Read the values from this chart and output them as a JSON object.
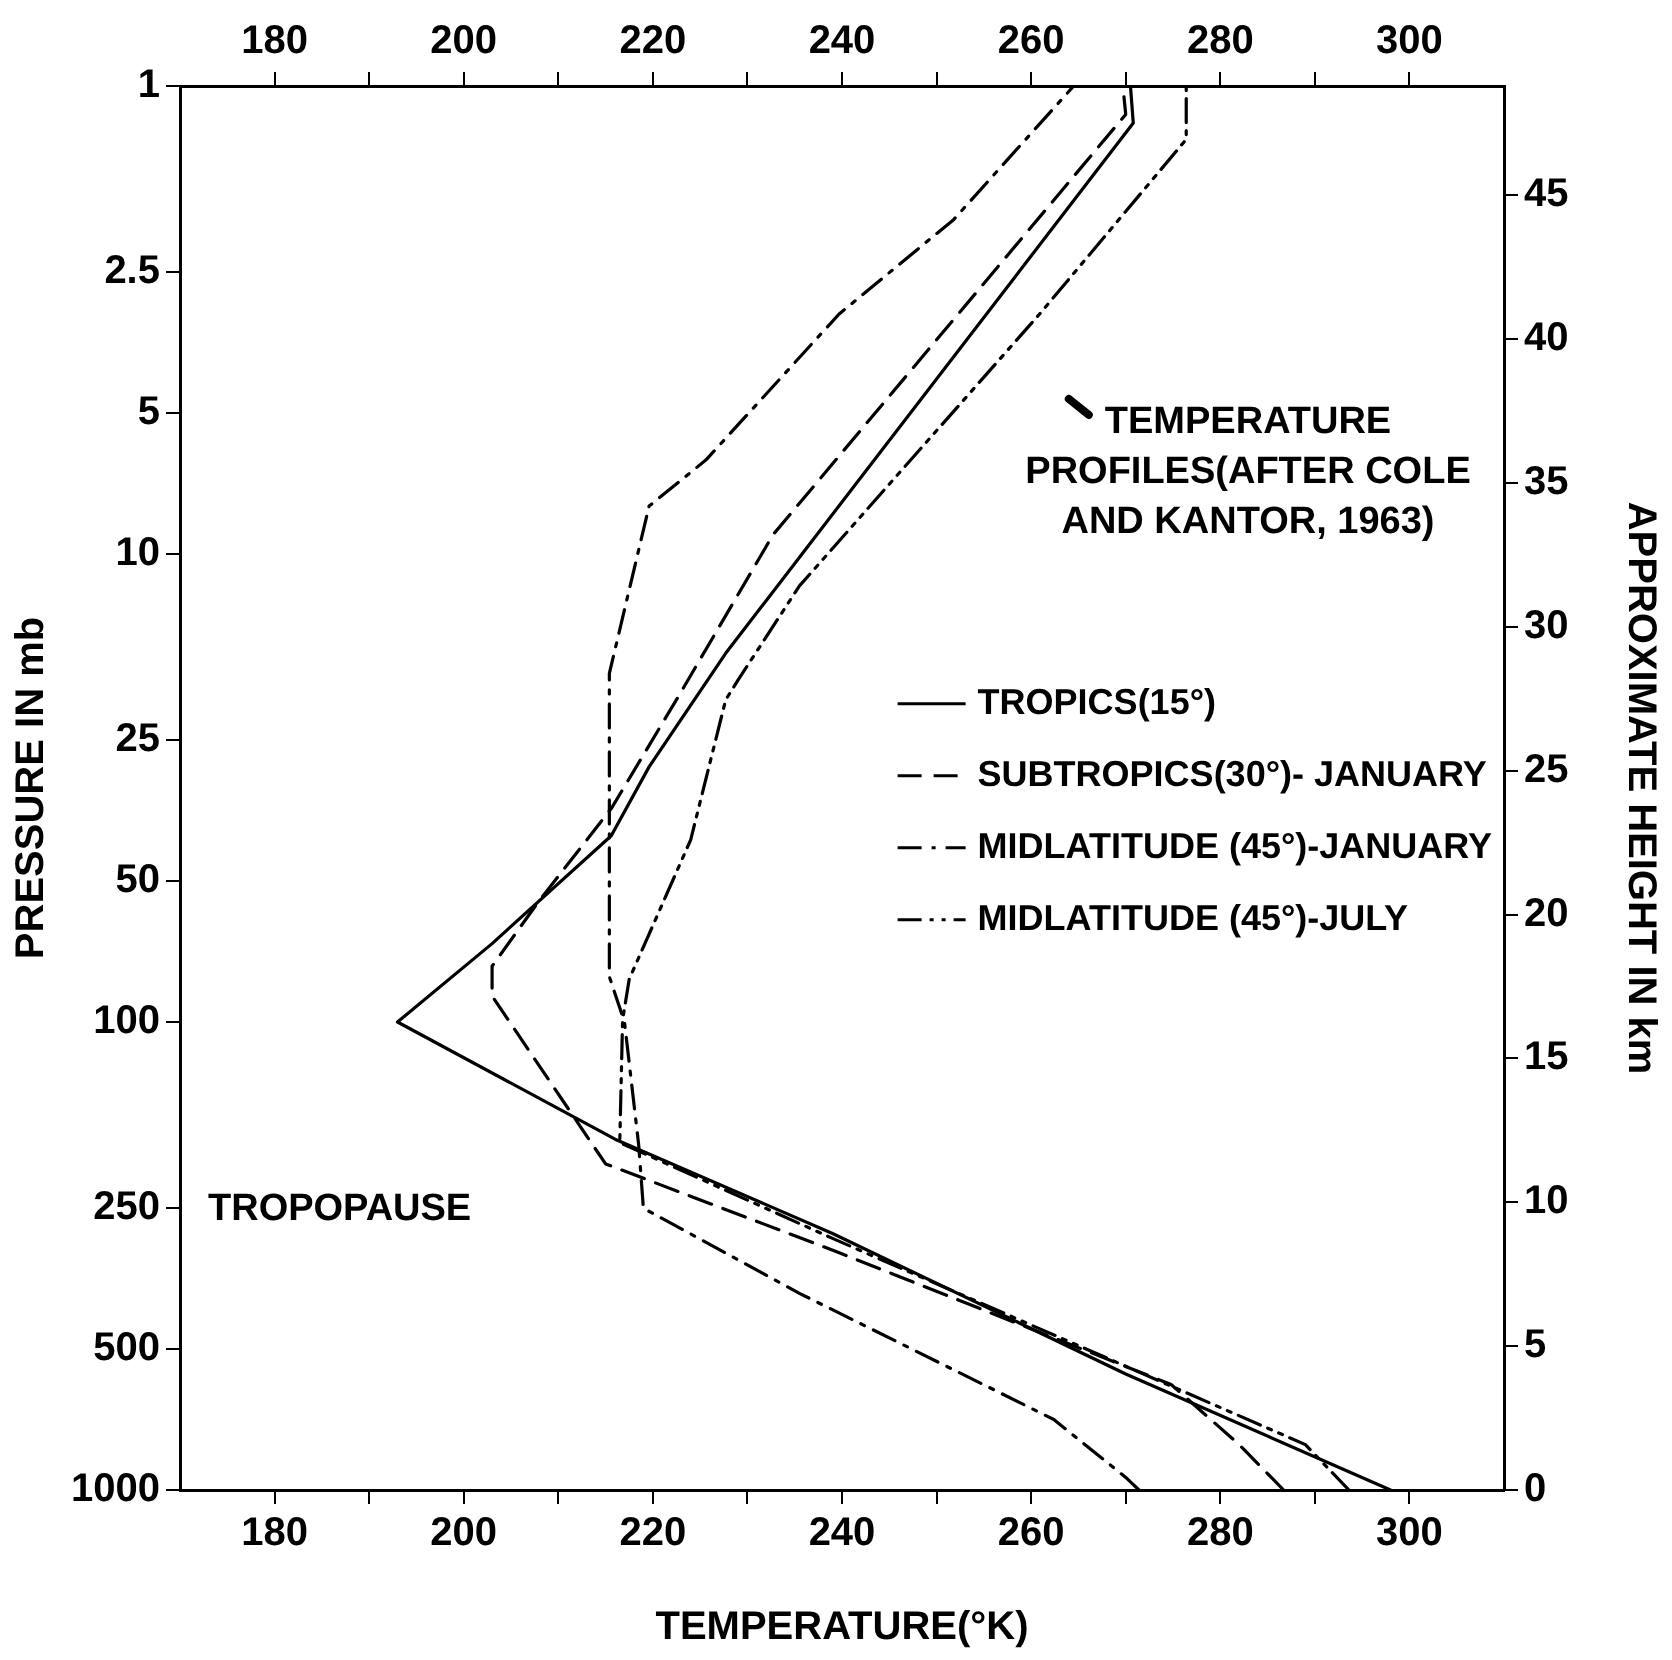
{
  "chart_data": {
    "type": "line",
    "xlabel": "TEMPERATURE(°K)",
    "ylabel": "PRESSURE IN mb",
    "y2label": "APPROXIMATE HEIGHT IN km",
    "xlim": [
      170,
      310
    ],
    "xticks": [
      180,
      {
        "value": 190,
        "label": null
      },
      200,
      {
        "value": 210,
        "label": null
      },
      220,
      {
        "value": 230,
        "label": null
      },
      240,
      {
        "value": 250,
        "label": null
      },
      260,
      {
        "value": 270,
        "label": null
      },
      280,
      {
        "value": 290,
        "label": null
      },
      300
    ],
    "x2lim": [
      170,
      310
    ],
    "x2ticks": [
      180,
      {
        "value": 190,
        "label": null
      },
      200,
      {
        "value": 210,
        "label": null
      },
      220,
      {
        "value": 230,
        "label": null
      },
      240,
      {
        "value": 250,
        "label": null
      },
      260,
      {
        "value": 270,
        "label": null
      },
      280,
      {
        "value": 290,
        "label": null
      },
      300
    ],
    "ylim": [
      1000,
      1
    ],
    "yticks": [
      1,
      2.5,
      5,
      10,
      25,
      50,
      100,
      250,
      500,
      1000
    ],
    "log": "y",
    "y2lim": [
      0,
      48.8
    ],
    "y2ticks": [
      0,
      5,
      10,
      15,
      20,
      25,
      30,
      35,
      40,
      45
    ],
    "grid": false,
    "marker": "none",
    "legend": "right",
    "series": [
      {
        "name": "TROPICS(15°)",
        "color": "#000000",
        "line_style": "solid",
        "x": [
          298,
          270,
          239,
          216,
          193,
          203,
          215.6,
          219.6,
          227.7,
          270.8,
          270.5
        ],
        "values": [
          1000,
          565,
          283,
          178,
          100,
          68,
          40,
          28.5,
          16.3,
          1.2,
          1
        ]
      },
      {
        "name": "SUBTROPICS(30°)- JANUARY",
        "color": "#000000",
        "line_style": "dashed",
        "x": [
          286.7,
          282,
          274.8,
          239.5,
          215,
          203,
          203,
          208,
          215.6,
          222.8,
          232.7,
          270,
          269.7
        ],
        "values": [
          1000,
          800,
          595,
          310,
          201,
          88,
          76,
          55,
          35,
          20,
          9.1,
          1.15,
          1
        ]
      },
      {
        "name": "MIDLATITUDE (45°)-JANUARY",
        "color": "#000000",
        "line_style": "dashdot",
        "x": [
          271.4,
          270,
          262.4,
          235.5,
          219,
          218.5,
          217,
          215.4,
          215.4,
          219.6,
          225.6,
          239.7,
          251.8,
          264.5
        ],
        "values": [
          1000,
          940,
          707,
          380,
          250,
          183,
          100,
          80,
          18,
          7.9,
          6.3,
          3.07,
          1.93,
          1
        ]
      },
      {
        "name": "MIDLATITUDE (45°)-JULY",
        "color": "#000000",
        "line_style": "dashdotdot",
        "x": [
          293.6,
          289,
          239,
          216.5,
          216.8,
          217.5,
          224,
          227.7,
          229,
          235.5,
          260.9,
          276.4,
          276.4
        ],
        "values": [
          1000,
          800,
          290,
          181,
          99,
          81,
          40.8,
          20.5,
          18.6,
          11.7,
          3.07,
          1.3,
          1
        ]
      }
    ],
    "annotations": [
      "TEMPERATURE PROFILES(AFTER COLE AND KANTOR, 1963)",
      "TROPOPAUSE"
    ]
  }
}
